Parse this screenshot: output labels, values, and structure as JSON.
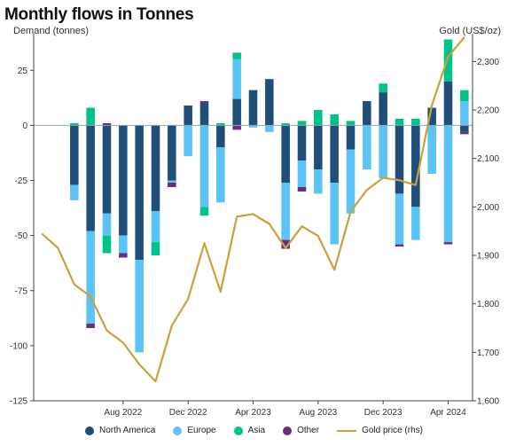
{
  "chart_data": {
    "type": "bar",
    "title": "Monthly flows in Tonnes",
    "ylabel": "Demand (tonnes)",
    "ylabel_right": "Gold (US$/oz)",
    "ylim": [
      -125,
      40
    ],
    "ylim_right": [
      1600,
      2350
    ],
    "yticks": [
      25,
      0,
      -25,
      -50,
      -75,
      -100,
      -125
    ],
    "yticks_labels": [
      "25",
      "0",
      "-25",
      "-50",
      "-75",
      "-100",
      "-125"
    ],
    "yticks_right": [
      2300,
      2200,
      2100,
      2000,
      1900,
      1800,
      1700,
      1600
    ],
    "yticks_right_labels": [
      "2,300",
      "2,200",
      "2,100",
      "2,000",
      "1,900",
      "1,800",
      "1,700",
      "1,600"
    ],
    "x": [
      "2022-05",
      "2022-06",
      "2022-07",
      "2022-08",
      "2022-09",
      "2022-10",
      "2022-11",
      "2022-12",
      "2023-01",
      "2023-02",
      "2023-03",
      "2023-04",
      "2023-05",
      "2023-06",
      "2023-07",
      "2023-08",
      "2023-09",
      "2023-10",
      "2023-11",
      "2023-12",
      "2024-01",
      "2024-02",
      "2024-03",
      "2024-04",
      "2024-05"
    ],
    "x_ticks": [
      "Aug 2022",
      "Dec 2022",
      "Apr 2023",
      "Aug 2023",
      "Dec 2023",
      "Apr 2024"
    ],
    "x_tick_months": [
      "2022-08",
      "2022-12",
      "2023-04",
      "2023-08",
      "2023-12",
      "2024-04"
    ],
    "series": [
      {
        "name": "North America",
        "color": "#1f4e79",
        "values": [
          -27,
          -48,
          -40,
          -50,
          -61,
          -39,
          -25,
          9,
          10,
          -10,
          12,
          16,
          21,
          -26,
          -16,
          -20,
          -26,
          -11,
          11,
          15,
          -31,
          -37,
          8,
          20,
          -3
        ]
      },
      {
        "name": "Europe",
        "color": "#5bc4f5",
        "values": [
          -7,
          -42,
          -10,
          -8,
          -42,
          -14,
          -1,
          -14,
          -37,
          -25,
          18,
          -1,
          -3,
          -26,
          -12,
          -11,
          -28,
          -29,
          -20,
          -24,
          -23,
          -15,
          -22,
          -53,
          11
        ]
      },
      {
        "name": "Asia",
        "color": "#00c389",
        "values": [
          1,
          8,
          -8,
          0,
          0,
          -6,
          0,
          0,
          -4,
          1,
          3,
          0,
          0,
          1,
          2,
          7,
          5,
          2,
          0,
          4,
          3,
          3,
          0,
          19,
          5
        ]
      },
      {
        "name": "Other",
        "color": "#6a2c7e",
        "values": [
          0,
          -2,
          1,
          -2,
          0,
          0,
          -2,
          0,
          1,
          0,
          -2,
          0,
          0,
          -4,
          -2,
          0,
          0,
          0,
          0,
          0,
          -1,
          0,
          0,
          -1,
          -1
        ]
      }
    ],
    "gold_price": {
      "name": "Gold price (rhs)",
      "color": "#c9a13d",
      "x": [
        "2022-03",
        "2022-04",
        "2022-05",
        "2022-06",
        "2022-07",
        "2022-08",
        "2022-09",
        "2022-10",
        "2022-11",
        "2022-12",
        "2023-01",
        "2023-02",
        "2023-03",
        "2023-04",
        "2023-05",
        "2023-06",
        "2023-07",
        "2023-08",
        "2023-09",
        "2023-10",
        "2023-11",
        "2023-12",
        "2024-01",
        "2024-02",
        "2024-03",
        "2024-04",
        "2024-05"
      ],
      "values": [
        1945,
        1915,
        1840,
        1815,
        1745,
        1720,
        1675,
        1640,
        1755,
        1810,
        1925,
        1825,
        1980,
        1985,
        1965,
        1915,
        1960,
        1940,
        1870,
        1990,
        2035,
        2060,
        2055,
        2045,
        2210,
        2310,
        2350
      ]
    },
    "legend_position": "bottom",
    "grid": false
  }
}
